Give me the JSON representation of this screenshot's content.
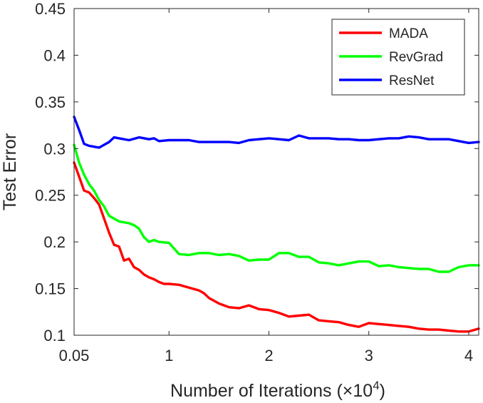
{
  "chart_data": {
    "type": "line",
    "xlabel": "Number of Iterations (×10⁴)",
    "ylabel": "Test Error",
    "xlim": [
      0.05,
      4.1
    ],
    "ylim": [
      0.1,
      0.45
    ],
    "x_ticks": [
      0.05,
      1,
      2,
      3,
      4
    ],
    "x_tick_labels": [
      "0.05",
      "1",
      "2",
      "3",
      "4"
    ],
    "y_ticks": [
      0.1,
      0.15,
      0.2,
      0.25,
      0.3,
      0.35,
      0.4,
      0.45
    ],
    "y_tick_labels": [
      "0.1",
      "0.15",
      "0.2",
      "0.25",
      "0.3",
      "0.35",
      "0.4",
      "0.45"
    ],
    "grid": false,
    "legend_position": "top-right",
    "series": [
      {
        "name": "MADA",
        "color": "#ff0000",
        "points": [
          [
            0.05,
            0.285
          ],
          [
            0.1,
            0.27
          ],
          [
            0.15,
            0.255
          ],
          [
            0.2,
            0.253
          ],
          [
            0.25,
            0.247
          ],
          [
            0.3,
            0.24
          ],
          [
            0.35,
            0.225
          ],
          [
            0.4,
            0.21
          ],
          [
            0.45,
            0.197
          ],
          [
            0.5,
            0.195
          ],
          [
            0.55,
            0.18
          ],
          [
            0.6,
            0.182
          ],
          [
            0.65,
            0.173
          ],
          [
            0.7,
            0.17
          ],
          [
            0.75,
            0.165
          ],
          [
            0.8,
            0.162
          ],
          [
            0.85,
            0.16
          ],
          [
            0.9,
            0.157
          ],
          [
            0.95,
            0.155
          ],
          [
            1.0,
            0.155
          ],
          [
            1.1,
            0.154
          ],
          [
            1.2,
            0.151
          ],
          [
            1.3,
            0.148
          ],
          [
            1.35,
            0.145
          ],
          [
            1.4,
            0.14
          ],
          [
            1.5,
            0.134
          ],
          [
            1.6,
            0.13
          ],
          [
            1.7,
            0.129
          ],
          [
            1.8,
            0.132
          ],
          [
            1.9,
            0.128
          ],
          [
            2.0,
            0.127
          ],
          [
            2.1,
            0.124
          ],
          [
            2.2,
            0.12
          ],
          [
            2.3,
            0.121
          ],
          [
            2.4,
            0.122
          ],
          [
            2.5,
            0.116
          ],
          [
            2.6,
            0.115
          ],
          [
            2.7,
            0.114
          ],
          [
            2.8,
            0.111
          ],
          [
            2.9,
            0.109
          ],
          [
            3.0,
            0.113
          ],
          [
            3.1,
            0.112
          ],
          [
            3.2,
            0.111
          ],
          [
            3.3,
            0.11
          ],
          [
            3.4,
            0.109
          ],
          [
            3.5,
            0.107
          ],
          [
            3.6,
            0.106
          ],
          [
            3.7,
            0.106
          ],
          [
            3.8,
            0.105
          ],
          [
            3.9,
            0.104
          ],
          [
            4.0,
            0.104
          ],
          [
            4.1,
            0.107
          ]
        ]
      },
      {
        "name": "RevGrad",
        "color": "#00ff00",
        "points": [
          [
            0.05,
            0.304
          ],
          [
            0.1,
            0.285
          ],
          [
            0.15,
            0.272
          ],
          [
            0.2,
            0.262
          ],
          [
            0.25,
            0.255
          ],
          [
            0.3,
            0.245
          ],
          [
            0.35,
            0.238
          ],
          [
            0.4,
            0.228
          ],
          [
            0.5,
            0.222
          ],
          [
            0.6,
            0.22
          ],
          [
            0.65,
            0.218
          ],
          [
            0.7,
            0.214
          ],
          [
            0.75,
            0.205
          ],
          [
            0.8,
            0.2
          ],
          [
            0.85,
            0.202
          ],
          [
            0.9,
            0.2
          ],
          [
            1.0,
            0.199
          ],
          [
            1.05,
            0.193
          ],
          [
            1.1,
            0.187
          ],
          [
            1.2,
            0.186
          ],
          [
            1.3,
            0.188
          ],
          [
            1.4,
            0.188
          ],
          [
            1.5,
            0.186
          ],
          [
            1.6,
            0.187
          ],
          [
            1.7,
            0.185
          ],
          [
            1.8,
            0.18
          ],
          [
            1.9,
            0.181
          ],
          [
            2.0,
            0.181
          ],
          [
            2.1,
            0.188
          ],
          [
            2.2,
            0.188
          ],
          [
            2.3,
            0.184
          ],
          [
            2.4,
            0.184
          ],
          [
            2.5,
            0.178
          ],
          [
            2.6,
            0.177
          ],
          [
            2.7,
            0.175
          ],
          [
            2.8,
            0.177
          ],
          [
            2.9,
            0.179
          ],
          [
            3.0,
            0.179
          ],
          [
            3.1,
            0.174
          ],
          [
            3.2,
            0.175
          ],
          [
            3.3,
            0.173
          ],
          [
            3.4,
            0.172
          ],
          [
            3.5,
            0.171
          ],
          [
            3.6,
            0.171
          ],
          [
            3.7,
            0.168
          ],
          [
            3.8,
            0.168
          ],
          [
            3.9,
            0.173
          ],
          [
            4.0,
            0.175
          ],
          [
            4.1,
            0.175
          ]
        ]
      },
      {
        "name": "ResNet",
        "color": "#0000ff",
        "points": [
          [
            0.05,
            0.334
          ],
          [
            0.1,
            0.32
          ],
          [
            0.15,
            0.305
          ],
          [
            0.2,
            0.303
          ],
          [
            0.25,
            0.302
          ],
          [
            0.3,
            0.301
          ],
          [
            0.4,
            0.307
          ],
          [
            0.45,
            0.312
          ],
          [
            0.5,
            0.311
          ],
          [
            0.6,
            0.309
          ],
          [
            0.7,
            0.312
          ],
          [
            0.8,
            0.31
          ],
          [
            0.85,
            0.311
          ],
          [
            0.9,
            0.308
          ],
          [
            1.0,
            0.309
          ],
          [
            1.1,
            0.309
          ],
          [
            1.2,
            0.309
          ],
          [
            1.3,
            0.307
          ],
          [
            1.4,
            0.307
          ],
          [
            1.5,
            0.307
          ],
          [
            1.6,
            0.307
          ],
          [
            1.7,
            0.306
          ],
          [
            1.8,
            0.309
          ],
          [
            1.9,
            0.31
          ],
          [
            2.0,
            0.311
          ],
          [
            2.1,
            0.31
          ],
          [
            2.2,
            0.309
          ],
          [
            2.3,
            0.314
          ],
          [
            2.4,
            0.311
          ],
          [
            2.5,
            0.311
          ],
          [
            2.6,
            0.311
          ],
          [
            2.7,
            0.31
          ],
          [
            2.8,
            0.31
          ],
          [
            2.9,
            0.309
          ],
          [
            3.0,
            0.309
          ],
          [
            3.1,
            0.31
          ],
          [
            3.2,
            0.311
          ],
          [
            3.3,
            0.311
          ],
          [
            3.4,
            0.313
          ],
          [
            3.5,
            0.312
          ],
          [
            3.6,
            0.31
          ],
          [
            3.7,
            0.31
          ],
          [
            3.8,
            0.31
          ],
          [
            3.9,
            0.308
          ],
          [
            4.0,
            0.306
          ],
          [
            4.1,
            0.307
          ]
        ]
      }
    ]
  },
  "axis_color": "#262626"
}
